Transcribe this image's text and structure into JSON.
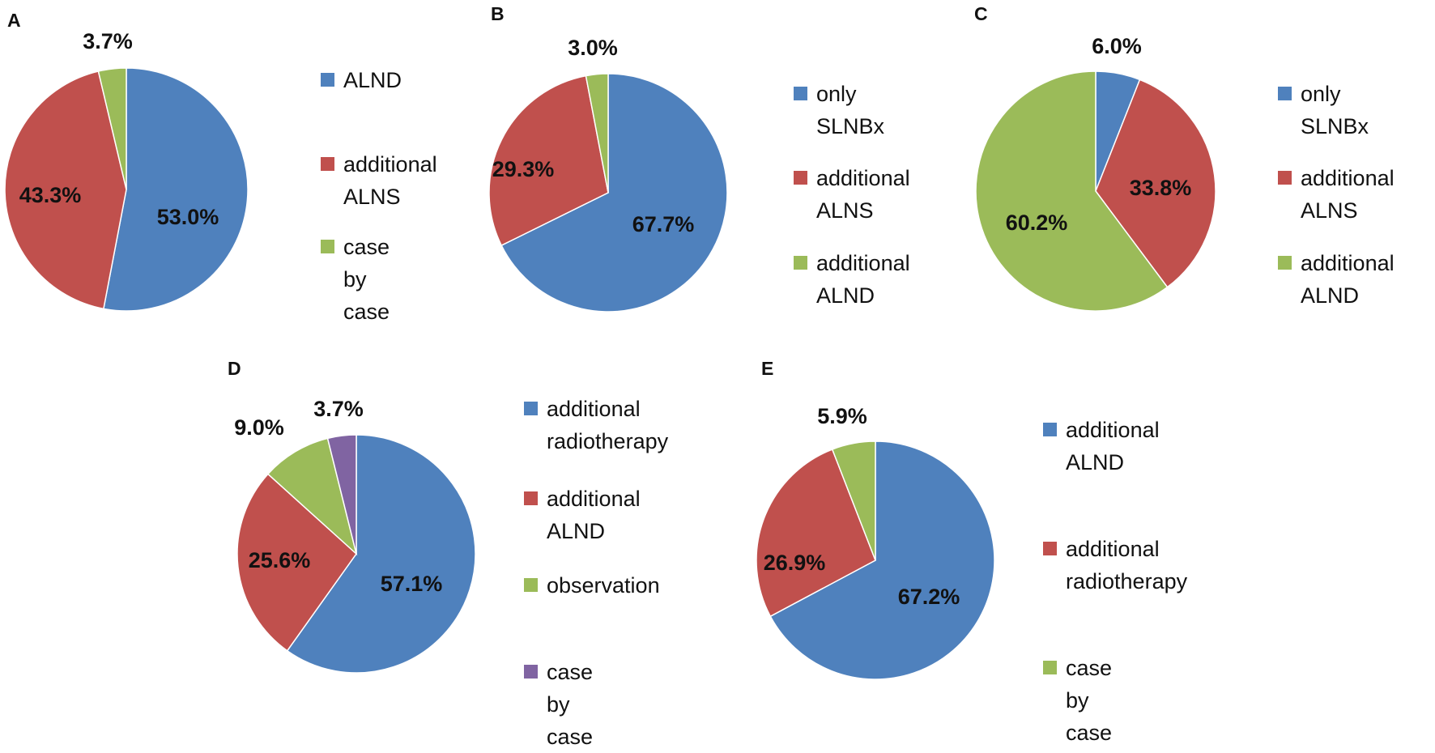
{
  "chart_data": [
    {
      "type": "pie",
      "panel": "A",
      "slices": [
        {
          "label": "ALND",
          "value": 53.0,
          "data_label": "53.0%",
          "color": "#4F81BD"
        },
        {
          "label": "additional\nALNS",
          "value": 43.3,
          "data_label": "43.3%",
          "color": "#C0504D"
        },
        {
          "label": "case  by\ncase",
          "value": 3.7,
          "data_label": "3.7%",
          "color": "#9BBB59"
        }
      ]
    },
    {
      "type": "pie",
      "panel": "B",
      "slices": [
        {
          "label": "only SLNBx",
          "value": 67.7,
          "data_label": "67.7%",
          "color": "#4F81BD"
        },
        {
          "label": "additional\nALNS",
          "value": 29.3,
          "data_label": "29.3%",
          "color": "#C0504D"
        },
        {
          "label": "additional\nALND",
          "value": 3.0,
          "data_label": "3.0%",
          "color": "#9BBB59"
        }
      ]
    },
    {
      "type": "pie",
      "panel": "C",
      "slices": [
        {
          "label": "only SLNBx",
          "value": 6.0,
          "data_label": "6.0%",
          "color": "#4F81BD"
        },
        {
          "label": "additional\nALNS",
          "value": 33.8,
          "data_label": "33.8%",
          "color": "#C0504D"
        },
        {
          "label": "additional\nALND",
          "value": 60.2,
          "data_label": "60.2%",
          "color": "#9BBB59"
        }
      ]
    },
    {
      "type": "pie",
      "panel": "D",
      "slices": [
        {
          "label": "additional\nradiotherapy",
          "value": 57.1,
          "data_label": "57.1%",
          "color": "#4F81BD"
        },
        {
          "label": "additional\nALND",
          "value": 25.6,
          "data_label": "25.6%",
          "color": "#C0504D"
        },
        {
          "label": "observation",
          "value": 9.0,
          "data_label": "9.0%",
          "color": "#9BBB59"
        },
        {
          "label": "case by case",
          "value": 3.7,
          "data_label": "3.7%",
          "color": "#8064A2"
        }
      ]
    },
    {
      "type": "pie",
      "panel": "E",
      "slices": [
        {
          "label": "additional\nALND",
          "value": 67.2,
          "data_label": "67.2%",
          "color": "#4F81BD"
        },
        {
          "label": "additional\nradiotherapy",
          "value": 26.9,
          "data_label": "26.9%",
          "color": "#C0504D"
        },
        {
          "label": "case by case",
          "value": 5.9,
          "data_label": "5.9%",
          "color": "#9BBB59"
        }
      ]
    }
  ]
}
